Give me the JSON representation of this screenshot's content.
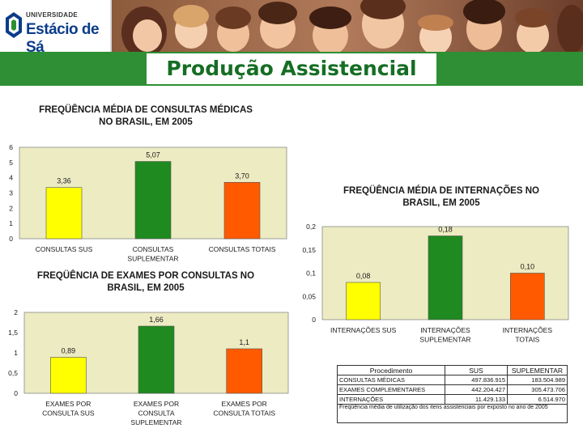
{
  "header": {
    "logo_line1": "UNIVERSIDADE",
    "logo_line2": "Estácio de Sá",
    "photo": "family-photo"
  },
  "slide_title": "Produção Assistencial",
  "colors": {
    "yellow": "#ffff00",
    "green": "#1f8a1f",
    "orange": "#ff5a00",
    "plot_bg": "#ecebc2",
    "title_bar": "#2e8f34"
  },
  "chart_data": [
    {
      "type": "bar",
      "title": "FREQÜÊNCIA MÉDIA DE CONSULTAS MÉDICAS\nNO BRASIL, EM 2005",
      "categories": [
        "CONSULTAS SUS",
        "CONSULTAS\nSUPLEMENTAR",
        "CONSULTAS TOTAIS"
      ],
      "values": [
        3.36,
        5.07,
        3.7
      ],
      "value_labels": [
        "3,36",
        "5,07",
        "3,70"
      ],
      "yticks": [
        "0",
        "1",
        "2",
        "3",
        "4",
        "5",
        "6"
      ],
      "ylim": [
        0,
        6
      ],
      "grid": false
    },
    {
      "type": "bar",
      "title": "FREQÜÊNCIA DE EXAMES POR CONSULTAS NO\nBRASIL, EM 2005",
      "categories": [
        "EXAMES POR\nCONSULTA SUS",
        "EXAMES POR\nCONSULTA\nSUPLEMENTAR",
        "EXAMES POR\nCONSULTA TOTAIS"
      ],
      "values": [
        0.89,
        1.66,
        1.1
      ],
      "value_labels": [
        "0,89",
        "1,66",
        "1,1"
      ],
      "yticks": [
        "0",
        "0,5",
        "1",
        "1,5",
        "2"
      ],
      "ylim": [
        0,
        2
      ],
      "grid": false
    },
    {
      "type": "bar",
      "title": "FREQÜÊNCIA MÉDIA DE INTERNAÇÕES NO\nBRASIL, EM 2005",
      "categories": [
        "INTERNAÇÕES SUS",
        "INTERNAÇÕES\nSUPLEMENTAR",
        "INTERNAÇÕES\nTOTAIS"
      ],
      "values": [
        0.08,
        0.18,
        0.1
      ],
      "value_labels": [
        "0,08",
        "0,18",
        "0,10"
      ],
      "yticks": [
        "0",
        "0,05",
        "0,1",
        "0,15",
        "0,2"
      ],
      "ylim": [
        0,
        0.2
      ],
      "grid": false
    },
    {
      "type": "table",
      "columns": [
        "Procedimento",
        "SUS",
        "SUPLEMENTAR"
      ],
      "rows": [
        [
          "CONSULTAS MÉDICAS",
          "497.836.915",
          "183.504.989"
        ],
        [
          "EXAMES COMPLEMENTARES",
          "442.204.427",
          "305.473.706"
        ],
        [
          "INTERNAÇÕES",
          "11.429.133",
          "6.514.970"
        ]
      ],
      "footnote": "Freqüência média de utilização dos itens assistenciais por exposto no ano de 2005"
    }
  ]
}
